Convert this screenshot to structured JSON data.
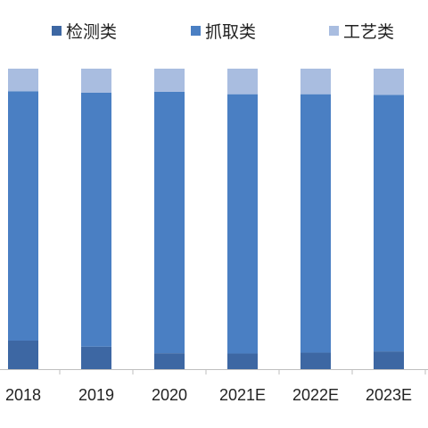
{
  "chart_data": {
    "type": "bar",
    "stacked": true,
    "normalized_to": 100,
    "categories": [
      "2018",
      "2019",
      "2020",
      "2021E",
      "2022E",
      "2023E"
    ],
    "series": [
      {
        "name": "检测类",
        "color": "#3d67a3",
        "values": [
          9.5,
          7.5,
          5.3,
          5.2,
          5.5,
          5.9
        ]
      },
      {
        "name": "抓取类",
        "color": "#4a7fc3",
        "values": [
          83.0,
          84.5,
          87.0,
          86.3,
          86.0,
          85.4
        ]
      },
      {
        "name": "工艺类",
        "color": "#a9bde0",
        "values": [
          7.5,
          8.0,
          7.7,
          8.5,
          8.5,
          8.7
        ]
      }
    ],
    "ylim": [
      0,
      100
    ],
    "legend_position": "top",
    "grid": false,
    "title": "",
    "xlabel": "",
    "ylabel": ""
  }
}
